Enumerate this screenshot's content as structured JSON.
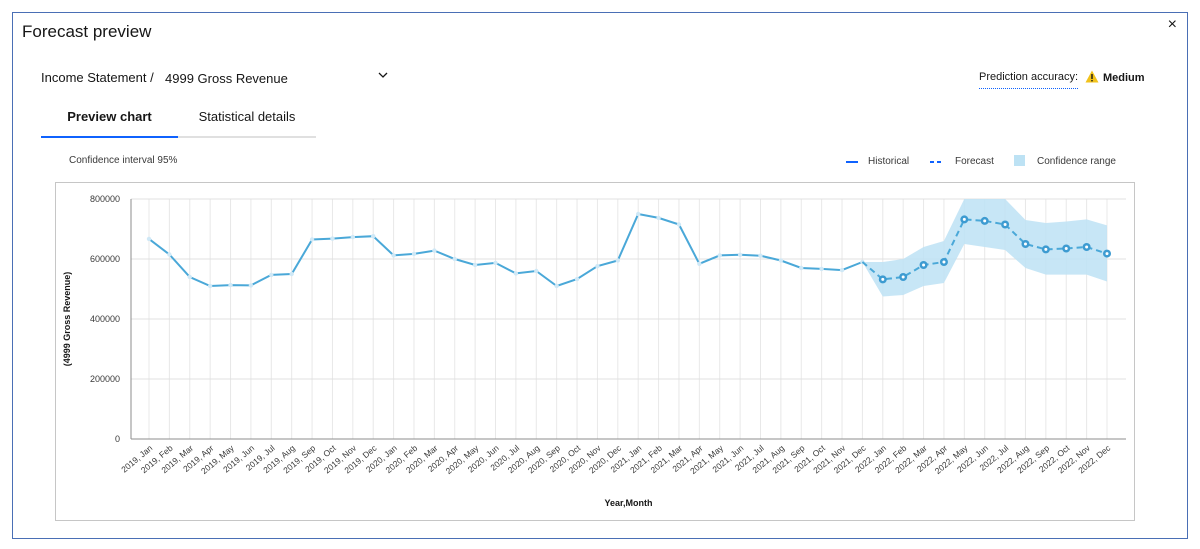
{
  "dialog": {
    "title": "Forecast preview",
    "close_label": "×"
  },
  "selector": {
    "breadcrumb": "Income Statement /",
    "value": "4999 Gross Revenue"
  },
  "prediction": {
    "label": "Prediction accuracy:",
    "value": "Medium"
  },
  "tabs": [
    {
      "label": "Preview chart",
      "active": true
    },
    {
      "label": "Statistical details",
      "active": false
    }
  ],
  "chart_header": {
    "confidence_label": "Confidence interval 95%"
  },
  "legend": {
    "historical": "Historical",
    "forecast": "Forecast",
    "confidence": "Confidence range"
  },
  "colors": {
    "line": "#4aa8d8",
    "forecast_point": "#3d9bd1",
    "confidence_band": "#bde2f4",
    "accent_tab": "#0f62fe",
    "warning": "#f1c21b"
  },
  "chart_data": {
    "type": "line",
    "xlabel": "Year,Month",
    "ylabel": "(4999 Gross Revenue)",
    "ylim": [
      0,
      800000
    ],
    "yticks": [
      0,
      200000,
      400000,
      600000,
      800000
    ],
    "grid": true,
    "legend_position": "top-right",
    "categories": [
      "2019, Jan",
      "2019, Feb",
      "2019, Mar",
      "2019, Apr",
      "2019, May",
      "2019, Jun",
      "2019, Jul",
      "2019, Aug",
      "2019, Sep",
      "2019, Oct",
      "2019, Nov",
      "2019, Dec",
      "2020, Jan",
      "2020, Feb",
      "2020, Mar",
      "2020, Apr",
      "2020, May",
      "2020, Jun",
      "2020, Jul",
      "2020, Aug",
      "2020, Sep",
      "2020, Oct",
      "2020, Nov",
      "2020, Dec",
      "2021, Jan",
      "2021, Feb",
      "2021, Mar",
      "2021, Apr",
      "2021, May",
      "2021, Jun",
      "2021, Jul",
      "2021, Aug",
      "2021, Sep",
      "2021, Oct",
      "2021, Nov",
      "2021, Dec",
      "2022, Jan",
      "2022, Feb",
      "2022, Mar",
      "2022, Apr",
      "2022, May",
      "2022, Jun",
      "2022, Jul",
      "2022, Aug",
      "2022, Sep",
      "2022, Oct",
      "2022, Nov",
      "2022, Dec"
    ],
    "series": [
      {
        "name": "Historical",
        "style": "solid",
        "values": [
          667000,
          615000,
          540000,
          510000,
          513000,
          512000,
          547000,
          550000,
          665000,
          668000,
          673000,
          676000,
          612000,
          617000,
          628000,
          600000,
          580000,
          587000,
          552000,
          560000,
          510000,
          533000,
          576000,
          595000,
          750000,
          737000,
          715000,
          584000,
          612000,
          614000,
          611000,
          595000,
          570000,
          567000,
          563000,
          590000,
          null,
          null,
          null,
          null,
          null,
          null,
          null,
          null,
          null,
          null,
          null,
          null
        ]
      },
      {
        "name": "Forecast",
        "style": "dashed",
        "values": [
          null,
          null,
          null,
          null,
          null,
          null,
          null,
          null,
          null,
          null,
          null,
          null,
          null,
          null,
          null,
          null,
          null,
          null,
          null,
          null,
          null,
          null,
          null,
          null,
          null,
          null,
          null,
          null,
          null,
          null,
          null,
          null,
          null,
          null,
          null,
          590000,
          532000,
          540000,
          580000,
          590000,
          732000,
          727000,
          715000,
          650000,
          632000,
          635000,
          640000,
          618000
        ]
      }
    ],
    "confidence_range": {
      "name": "Confidence range",
      "lower": [
        null,
        null,
        null,
        null,
        null,
        null,
        null,
        null,
        null,
        null,
        null,
        null,
        null,
        null,
        null,
        null,
        null,
        null,
        null,
        null,
        null,
        null,
        null,
        null,
        null,
        null,
        null,
        null,
        null,
        null,
        null,
        null,
        null,
        null,
        null,
        590000,
        475000,
        480000,
        510000,
        520000,
        650000,
        640000,
        630000,
        570000,
        548000,
        548000,
        548000,
        525000
      ],
      "upper": [
        null,
        null,
        null,
        null,
        null,
        null,
        null,
        null,
        null,
        null,
        null,
        null,
        null,
        null,
        null,
        null,
        null,
        null,
        null,
        null,
        null,
        null,
        null,
        null,
        null,
        null,
        null,
        null,
        null,
        null,
        null,
        null,
        null,
        null,
        null,
        590000,
        590000,
        600000,
        640000,
        660000,
        800000,
        800000,
        800000,
        730000,
        720000,
        725000,
        732000,
        712000
      ]
    }
  }
}
